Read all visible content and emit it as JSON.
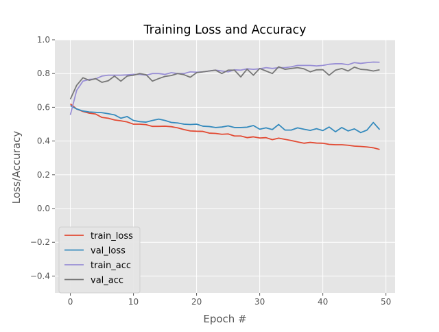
{
  "chart_data": {
    "type": "line",
    "title": "Training Loss and Accuracy",
    "xlabel": "Epoch #",
    "ylabel": "Loss/Accuracy",
    "xlim": [
      -2.45,
      51.45
    ],
    "ylim": [
      -0.5,
      1.0
    ],
    "xticks": [
      0,
      10,
      20,
      30,
      40,
      50
    ],
    "yticks": [
      -0.4,
      -0.2,
      0.0,
      0.2,
      0.4,
      0.6,
      0.8,
      1.0
    ],
    "xtick_labels": [
      "0",
      "10",
      "20",
      "30",
      "40",
      "50"
    ],
    "ytick_labels": [
      "−0.4",
      "−0.2",
      "0.0",
      "0.2",
      "0.4",
      "0.6",
      "0.8",
      "1.0"
    ],
    "grid": true,
    "legend_position": "bottom-left",
    "style": {
      "figure_bg": "#ffffff",
      "axes_bg": "#e5e5e5",
      "grid_color": "#ffffff",
      "text_color": "#555555",
      "title_color": "#000000",
      "legend_bg": "#e5e5e5",
      "legend_edge": "#cccccc"
    },
    "x": [
      0,
      1,
      2,
      3,
      4,
      5,
      6,
      7,
      8,
      9,
      10,
      11,
      12,
      13,
      14,
      15,
      16,
      17,
      18,
      19,
      20,
      21,
      22,
      23,
      24,
      25,
      26,
      27,
      28,
      29,
      30,
      31,
      32,
      33,
      34,
      35,
      36,
      37,
      38,
      39,
      40,
      41,
      42,
      43,
      44,
      45,
      46,
      47,
      48,
      49
    ],
    "series": [
      {
        "name": "train_loss",
        "color": "#e24a33",
        "values": [
          0.62,
          0.59,
          0.575,
          0.565,
          0.56,
          0.54,
          0.535,
          0.525,
          0.52,
          0.513,
          0.5,
          0.5,
          0.497,
          0.487,
          0.487,
          0.488,
          0.485,
          0.478,
          0.468,
          0.46,
          0.458,
          0.457,
          0.447,
          0.445,
          0.44,
          0.442,
          0.43,
          0.43,
          0.42,
          0.425,
          0.418,
          0.42,
          0.408,
          0.417,
          0.41,
          0.403,
          0.395,
          0.387,
          0.392,
          0.388,
          0.387,
          0.38,
          0.378,
          0.378,
          0.375,
          0.37,
          0.368,
          0.365,
          0.36,
          0.35
        ]
      },
      {
        "name": "val_loss",
        "color": "#348abd",
        "values": [
          0.61,
          0.59,
          0.578,
          0.572,
          0.57,
          0.568,
          0.562,
          0.555,
          0.535,
          0.545,
          0.522,
          0.515,
          0.512,
          0.522,
          0.53,
          0.522,
          0.51,
          0.507,
          0.5,
          0.498,
          0.5,
          0.488,
          0.486,
          0.48,
          0.483,
          0.49,
          0.48,
          0.48,
          0.482,
          0.492,
          0.47,
          0.478,
          0.468,
          0.498,
          0.465,
          0.465,
          0.478,
          0.47,
          0.463,
          0.473,
          0.462,
          0.483,
          0.455,
          0.48,
          0.46,
          0.472,
          0.45,
          0.465,
          0.51,
          0.468
        ]
      },
      {
        "name": "train_acc",
        "color": "#988ed5",
        "values": [
          0.555,
          0.7,
          0.755,
          0.765,
          0.768,
          0.785,
          0.79,
          0.79,
          0.79,
          0.792,
          0.795,
          0.795,
          0.79,
          0.8,
          0.8,
          0.795,
          0.805,
          0.8,
          0.8,
          0.81,
          0.808,
          0.81,
          0.815,
          0.82,
          0.815,
          0.81,
          0.822,
          0.82,
          0.828,
          0.825,
          0.828,
          0.835,
          0.83,
          0.835,
          0.835,
          0.84,
          0.848,
          0.848,
          0.848,
          0.845,
          0.848,
          0.855,
          0.858,
          0.858,
          0.852,
          0.865,
          0.86,
          0.865,
          0.868,
          0.867
        ]
      },
      {
        "name": "val_acc",
        "color": "#777777",
        "values": [
          0.648,
          0.73,
          0.775,
          0.76,
          0.77,
          0.748,
          0.757,
          0.785,
          0.755,
          0.785,
          0.79,
          0.8,
          0.793,
          0.755,
          0.77,
          0.783,
          0.788,
          0.8,
          0.793,
          0.778,
          0.805,
          0.81,
          0.815,
          0.82,
          0.8,
          0.82,
          0.82,
          0.78,
          0.826,
          0.79,
          0.83,
          0.815,
          0.8,
          0.84,
          0.825,
          0.83,
          0.835,
          0.828,
          0.81,
          0.822,
          0.823,
          0.79,
          0.82,
          0.83,
          0.815,
          0.838,
          0.825,
          0.822,
          0.815,
          0.822
        ]
      }
    ]
  }
}
